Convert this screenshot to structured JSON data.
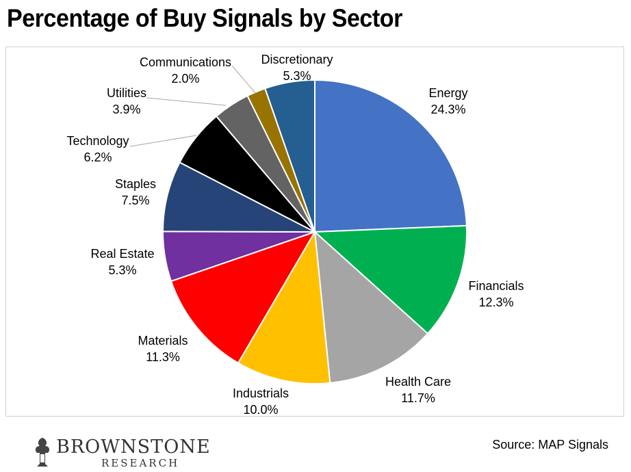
{
  "title": "Percentage of Buy Signals by Sector",
  "source": "Source: MAP Signals",
  "logo": {
    "name": "BROWNSTONE",
    "sub": "RESEARCH",
    "icon": "lamp-icon"
  },
  "chart_data": {
    "type": "pie",
    "title": "Percentage of Buy Signals by Sector",
    "start": "12 o'clock",
    "direction": "clockwise",
    "slices": [
      {
        "label": "Energy",
        "value_label": "24.3%",
        "value": 24.3,
        "color": "#4472C4"
      },
      {
        "label": "Financials",
        "value_label": "12.3%",
        "value": 12.3,
        "color": "#00B050"
      },
      {
        "label": "Health Care",
        "value_label": "11.7%",
        "value": 11.7,
        "color": "#A5A5A5"
      },
      {
        "label": "Industrials",
        "value_label": "10.0%",
        "value": 10.0,
        "color": "#FFC000"
      },
      {
        "label": "Materials",
        "value_label": "11.3%",
        "value": 11.3,
        "color": "#FF0000"
      },
      {
        "label": "Real Estate",
        "value_label": "5.3%",
        "value": 5.3,
        "color": "#7030A0"
      },
      {
        "label": "Staples",
        "value_label": "7.5%",
        "value": 7.5,
        "color": "#264478"
      },
      {
        "label": "Technology",
        "value_label": "6.2%",
        "value": 6.2,
        "color": "#000000"
      },
      {
        "label": "Utilities",
        "value_label": "3.9%",
        "value": 3.9,
        "color": "#636363"
      },
      {
        "label": "Communications",
        "value_label": "2.0%",
        "value": 2.0,
        "color": "#997300"
      },
      {
        "label": "Discretionary",
        "value_label": "5.3%",
        "value": 5.3,
        "color": "#255E91"
      }
    ]
  }
}
